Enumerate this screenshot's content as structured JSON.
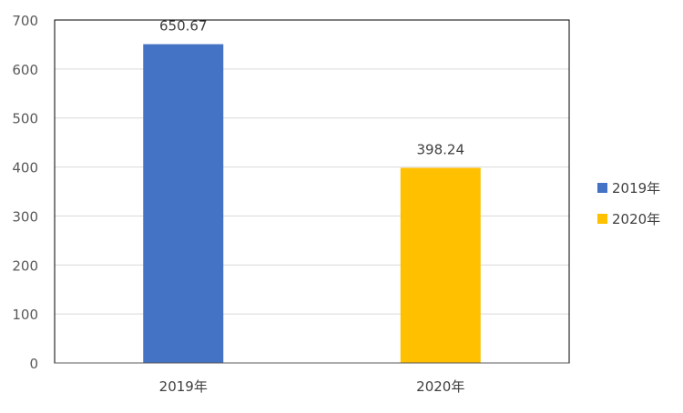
{
  "chart_data": {
    "type": "bar",
    "categories": [
      "2019年",
      "2020年"
    ],
    "values": [
      650.67,
      398.24
    ],
    "data_labels": [
      "650.67",
      "398.24"
    ],
    "colors": [
      "#4472C4",
      "#FFC000"
    ],
    "ylim": [
      0,
      700
    ],
    "yticks": [
      0,
      100,
      200,
      300,
      400,
      500,
      600,
      700
    ],
    "ytick_labels": [
      "0",
      "100",
      "200",
      "300",
      "400",
      "500",
      "600",
      "700"
    ],
    "grid": true,
    "legend_position": "right",
    "legend": [
      {
        "label": "2019年",
        "color": "#4472C4"
      },
      {
        "label": "2020年",
        "color": "#FFC000"
      }
    ]
  }
}
